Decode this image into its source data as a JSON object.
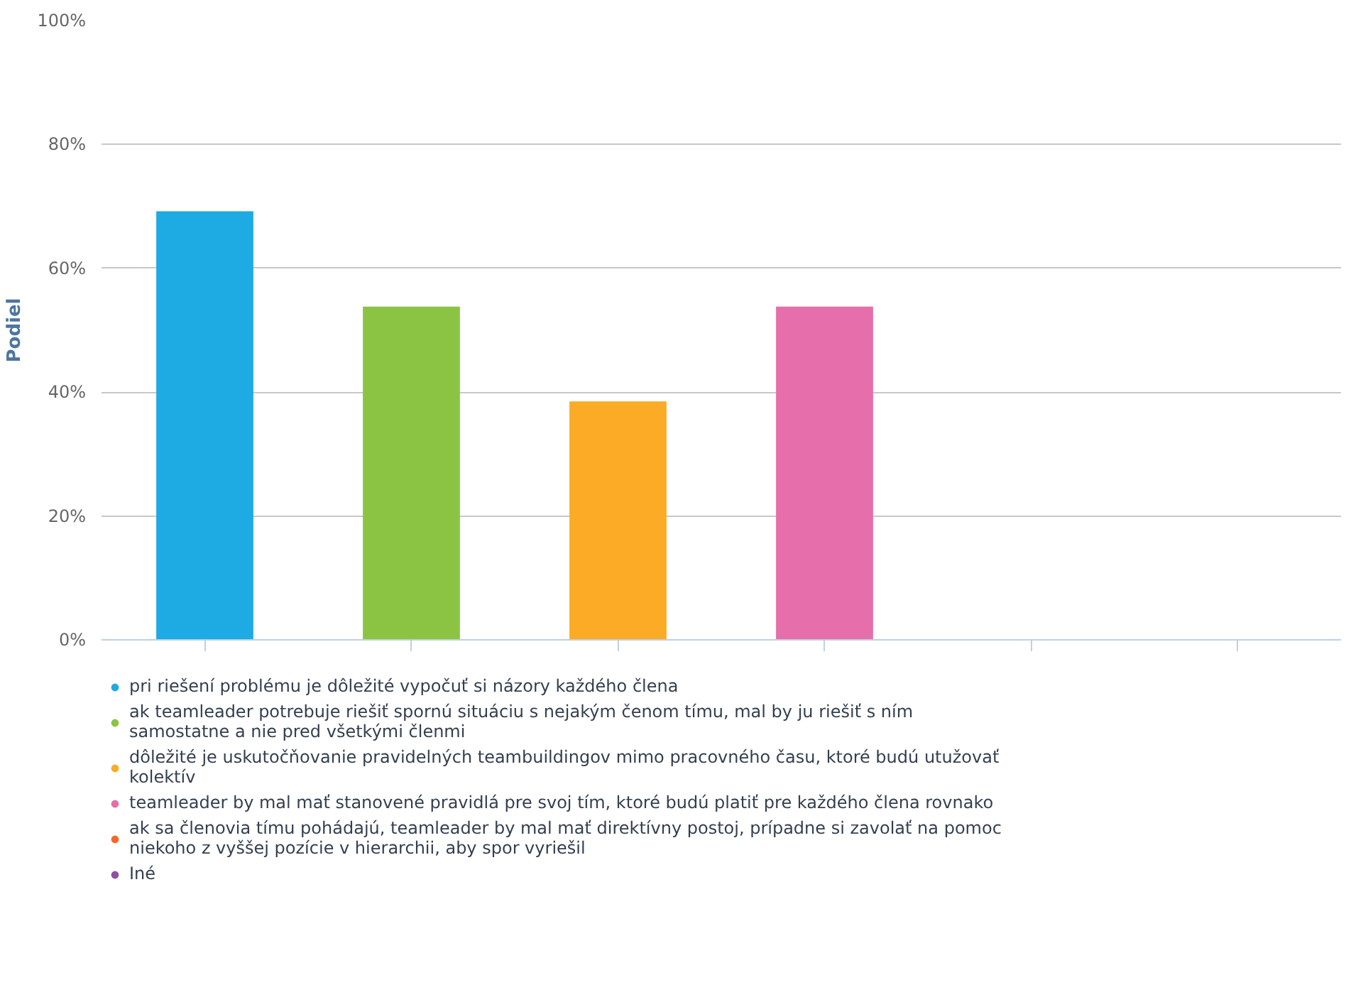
{
  "chart_data": {
    "type": "bar",
    "ylabel": "Podiel",
    "categories": [
      null,
      null,
      null,
      null,
      null,
      null
    ],
    "series": [
      {
        "name": "pri riešení problému je dôležité vypočuť si názory každého člena",
        "color": "#1eaae2",
        "values": [
          69.2,
          null,
          null,
          null,
          null,
          null
        ]
      },
      {
        "name": "ak teamleader potrebuje riešiť spornú situáciu s nejakým čenom tímu, mal by ju riešiť s ním samostatne a nie pred všetkými členmi",
        "color": "#8bc443",
        "values": [
          null,
          53.8,
          null,
          null,
          null,
          null
        ]
      },
      {
        "name": "dôležité je uskutočňovanie pravidelných teambuildingov mimo pracovného času, ktoré budú utužovať kolektív",
        "color": "#fbab25",
        "values": [
          null,
          null,
          38.5,
          null,
          null,
          null
        ]
      },
      {
        "name": "teamleader by mal mať stanovené pravidlá pre svoj tím, ktoré budú platiť pre každého člena rovnako",
        "color": "#e56eab",
        "values": [
          null,
          null,
          null,
          53.8,
          null,
          null
        ]
      },
      {
        "name": "ak sa členovia tímu pohádajú, teamleader by mal mať direktívny postoj, prípadne si zavolať na pomoc niekoho z vyššej pozície v hierarchii, aby spor vyriešil",
        "color": "#f4692b",
        "values": [
          null,
          null,
          null,
          null,
          0,
          null
        ]
      },
      {
        "name": "Iné",
        "color": "#8e52a0",
        "values": [
          null,
          null,
          null,
          null,
          null,
          0
        ]
      }
    ],
    "ylim": [
      0,
      100
    ],
    "yticks": [
      {
        "value": 0,
        "label": "0%"
      },
      {
        "value": 20,
        "label": "20%"
      },
      {
        "value": 40,
        "label": "40%"
      },
      {
        "value": 60,
        "label": "60%"
      },
      {
        "value": 80,
        "label": "80%"
      },
      {
        "value": 100,
        "label": "100%"
      }
    ],
    "grid": "y",
    "legend": "bottom",
    "tick_labels": "y"
  }
}
